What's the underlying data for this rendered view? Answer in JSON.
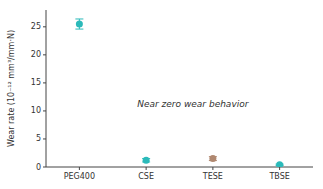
{
  "chart_data": {
    "type": "scatter",
    "categories": [
      "PEG400",
      "CSE",
      "TESE",
      "TBSE"
    ],
    "values": [
      25.5,
      1.2,
      1.5,
      0.4
    ],
    "error_bars": [
      0.9,
      0.3,
      0.35,
      0.12
    ],
    "colors": [
      "#2bbaba",
      "#2bbaba",
      "#b08870",
      "#2bbaba"
    ],
    "ylabel": "Wear rate (10⁻¹² mm³/mm·N)",
    "ylim": [
      0,
      28
    ],
    "yticks": [
      0,
      5,
      10,
      15,
      20,
      25
    ],
    "annotation": "Near zero wear behavior",
    "grid": false
  }
}
